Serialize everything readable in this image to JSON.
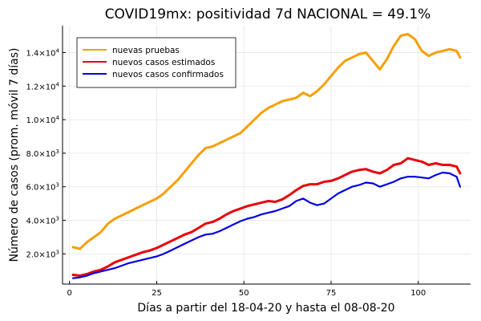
{
  "chart_data": {
    "type": "line",
    "title": "COVID19mx: positividad 7d NACIONAL = 49.1%",
    "xlabel": "Días a partir del 18-04-20 y hasta el 08-08-20",
    "ylabel": "Número de casos (prom. móvil 7 días)",
    "xlim": [
      -2,
      115
    ],
    "ylim": [
      200,
      15600
    ],
    "grid": true,
    "legend_position": "top-left",
    "x_ticks": [
      0,
      25,
      50,
      75,
      100
    ],
    "x_tick_labels": [
      "0",
      "25",
      "50",
      "75",
      "100"
    ],
    "y_ticks": [
      2000,
      4000,
      6000,
      8000,
      10000,
      12000,
      14000
    ],
    "y_tick_labels": [
      {
        "mantissa": "2.0×10",
        "exp": "3"
      },
      {
        "mantissa": "4.0×10",
        "exp": "3"
      },
      {
        "mantissa": "6.0×10",
        "exp": "3"
      },
      {
        "mantissa": "8.0×10",
        "exp": "3"
      },
      {
        "mantissa": "1.0×10",
        "exp": "4"
      },
      {
        "mantissa": "1.2×10",
        "exp": "4"
      },
      {
        "mantissa": "1.4×10",
        "exp": "4"
      }
    ],
    "series": [
      {
        "name": "nuevas pruebas",
        "color": "#f5a000",
        "x": [
          1,
          3,
          5,
          7,
          9,
          11,
          13,
          15,
          17,
          19,
          21,
          23,
          25,
          27,
          29,
          31,
          33,
          35,
          37,
          39,
          41,
          43,
          45,
          47,
          49,
          51,
          53,
          55,
          57,
          59,
          61,
          63,
          65,
          67,
          69,
          71,
          73,
          75,
          77,
          79,
          81,
          83,
          85,
          87,
          89,
          91,
          93,
          95,
          97,
          99,
          101,
          103,
          105,
          107,
          109,
          111,
          112
        ],
        "y": [
          2400,
          2300,
          2700,
          3000,
          3300,
          3800,
          4100,
          4300,
          4500,
          4700,
          4900,
          5100,
          5300,
          5600,
          6000,
          6400,
          6900,
          7400,
          7900,
          8300,
          8400,
          8600,
          8800,
          9000,
          9200,
          9600,
          10000,
          10400,
          10700,
          10900,
          11100,
          11200,
          11300,
          11600,
          11400,
          11700,
          12100,
          12600,
          13100,
          13500,
          13700,
          13900,
          14000,
          13500,
          13000,
          13600,
          14400,
          15000,
          15100,
          14800,
          14100,
          13800,
          14000,
          14100,
          14200,
          14100,
          13700
        ]
      },
      {
        "name": "nuevos casos estimados",
        "color": "#e8000b",
        "x": [
          1,
          3,
          5,
          7,
          9,
          11,
          13,
          15,
          17,
          19,
          21,
          23,
          25,
          27,
          29,
          31,
          33,
          35,
          37,
          39,
          41,
          43,
          45,
          47,
          49,
          51,
          53,
          55,
          57,
          59,
          61,
          63,
          65,
          67,
          69,
          71,
          73,
          75,
          77,
          79,
          81,
          83,
          85,
          87,
          89,
          91,
          93,
          95,
          97,
          99,
          101,
          103,
          105,
          107,
          109,
          111,
          112
        ],
        "y": [
          750,
          700,
          800,
          950,
          1050,
          1250,
          1500,
          1650,
          1800,
          1950,
          2100,
          2200,
          2350,
          2550,
          2750,
          2950,
          3150,
          3300,
          3550,
          3800,
          3900,
          4100,
          4350,
          4550,
          4700,
          4850,
          4950,
          5050,
          5150,
          5100,
          5250,
          5500,
          5800,
          6050,
          6150,
          6150,
          6300,
          6350,
          6500,
          6700,
          6900,
          7000,
          7050,
          6900,
          6800,
          7000,
          7300,
          7400,
          7700,
          7600,
          7500,
          7300,
          7400,
          7300,
          7300,
          7200,
          6800
        ]
      },
      {
        "name": "nuevos casos confirmados",
        "color": "#0000e0",
        "x": [
          1,
          3,
          5,
          7,
          9,
          11,
          13,
          15,
          17,
          19,
          21,
          23,
          25,
          27,
          29,
          31,
          33,
          35,
          37,
          39,
          41,
          43,
          45,
          47,
          49,
          51,
          53,
          55,
          57,
          59,
          61,
          63,
          65,
          67,
          69,
          71,
          73,
          75,
          77,
          79,
          81,
          83,
          85,
          87,
          89,
          91,
          93,
          95,
          97,
          99,
          101,
          103,
          105,
          107,
          109,
          111,
          112
        ],
        "y": [
          550,
          600,
          700,
          850,
          950,
          1050,
          1150,
          1300,
          1450,
          1550,
          1650,
          1750,
          1850,
          2000,
          2200,
          2400,
          2600,
          2800,
          3000,
          3150,
          3200,
          3350,
          3550,
          3750,
          3950,
          4100,
          4200,
          4350,
          4450,
          4550,
          4700,
          4850,
          5150,
          5300,
          5050,
          4900,
          5000,
          5300,
          5600,
          5800,
          6000,
          6100,
          6250,
          6200,
          6000,
          6150,
          6300,
          6500,
          6600,
          6600,
          6550,
          6500,
          6700,
          6850,
          6800,
          6600,
          6000
        ]
      }
    ]
  }
}
